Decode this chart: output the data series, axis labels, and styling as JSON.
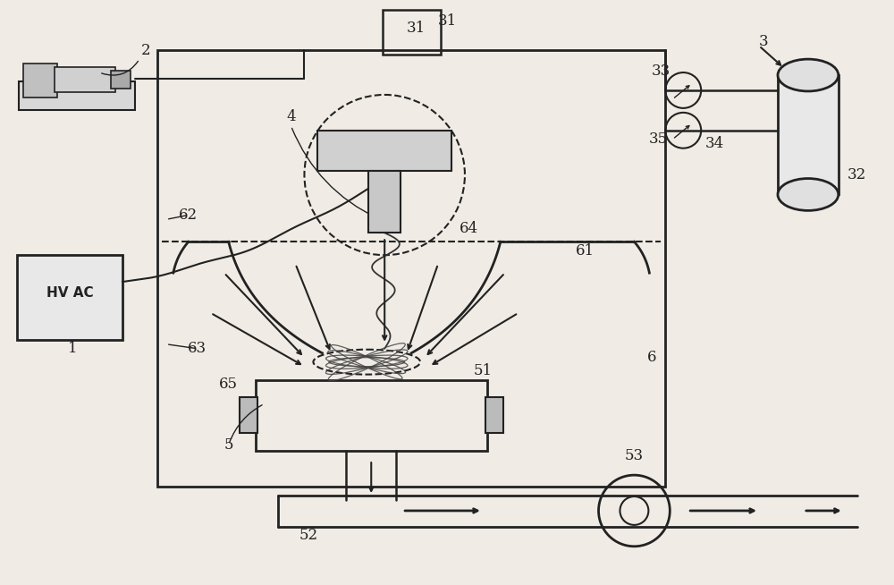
{
  "bg_color": "#f0ece5",
  "line_color": "#222222",
  "figsize": [
    10.0,
    6.54
  ],
  "dpi": 100
}
